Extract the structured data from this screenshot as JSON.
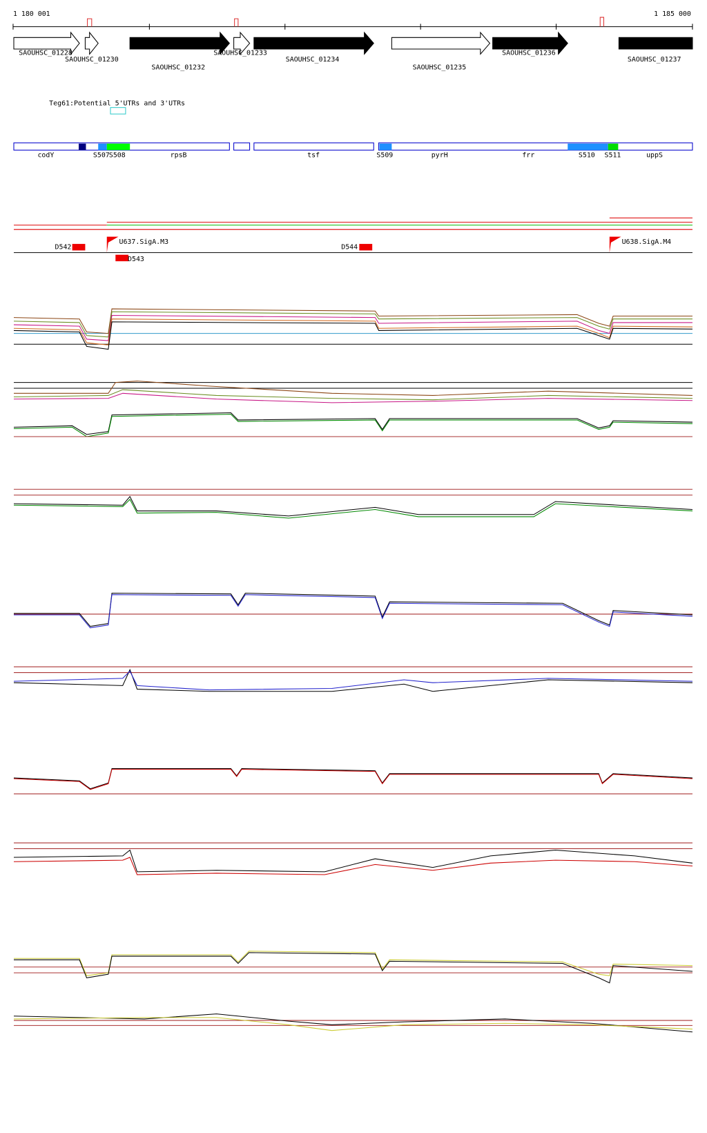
{
  "coordinates": {
    "start": "1 180 001",
    "end": "1 185 000"
  },
  "genes": [
    {
      "label": "SAOUHSC_01228"
    },
    {
      "label": "SAOUHSC_01230"
    },
    {
      "label": "SAOUHSC_01232"
    },
    {
      "label": "SAOUHSC_01233"
    },
    {
      "label": "SAOUHSC_01234"
    },
    {
      "label": "SAOUHSC_01235"
    },
    {
      "label": "SAOUHSC_01236"
    },
    {
      "label": "SAOUHSC_01237"
    }
  ],
  "track_title": "Teg61:Potential 5'UTRs and 3'UTRs",
  "features": [
    "codY",
    "S507",
    "S508",
    "rpsB",
    "tsf",
    "S509",
    "pyrH",
    "frr",
    "S510",
    "S511",
    "uppS"
  ],
  "promoters": [
    "D542",
    "U637.SigA.M3",
    "D543",
    "D544",
    "U638.SigA.M4"
  ]
}
